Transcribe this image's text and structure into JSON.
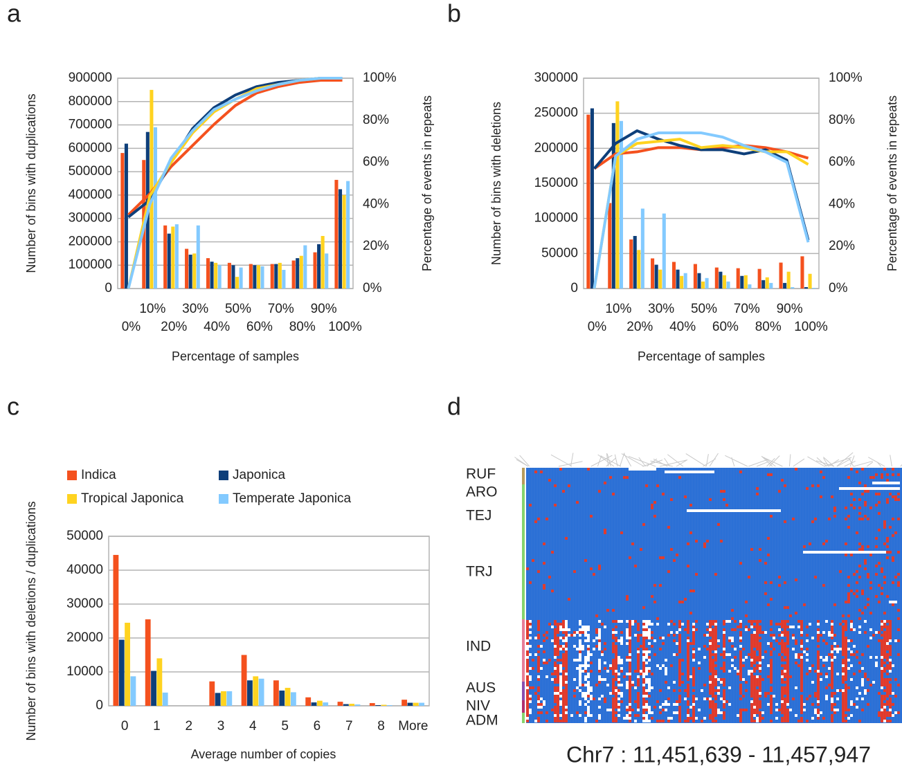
{
  "panel_labels": [
    "a",
    "b",
    "c",
    "d"
  ],
  "chart_data": [
    {
      "type": "bar-line",
      "categories": [
        "0%",
        "10%",
        "20%",
        "30%",
        "40%",
        "50%",
        "60%",
        "70%",
        "80%",
        "90%",
        "100%"
      ],
      "ylabel": "Number of bins with duplications",
      "y2label": "Percentage of events in repeats",
      "xlabel": "Percentage of samples",
      "ylim": [
        0,
        900000
      ],
      "yticks": [
        0,
        100000,
        200000,
        300000,
        400000,
        500000,
        600000,
        700000,
        800000,
        900000
      ],
      "y2lim": [
        0,
        100
      ],
      "y2ticks": [
        {
          "value": 0,
          "label": "0%"
        },
        {
          "value": 20,
          "label": "20%"
        },
        {
          "value": 40,
          "label": "40%"
        },
        {
          "value": 60,
          "label": "60%"
        },
        {
          "value": 80,
          "label": "80%"
        },
        {
          "value": 100,
          "label": "100%"
        }
      ],
      "grid": true,
      "series": [
        {
          "color": "#f4511e",
          "values": [
            580000,
            550000,
            270000,
            170000,
            130000,
            110000,
            105000,
            105000,
            120000,
            155000,
            465000
          ]
        },
        {
          "color": "#0e3f7a",
          "values": [
            620000,
            670000,
            235000,
            145000,
            115000,
            100000,
            100000,
            105000,
            130000,
            190000,
            425000
          ]
        },
        {
          "color": "#ffd320",
          "values": [
            0,
            850000,
            265000,
            150000,
            110000,
            50000,
            100000,
            110000,
            140000,
            225000,
            400000
          ]
        },
        {
          "color": "#83caff",
          "values": [
            0,
            690000,
            275000,
            270000,
            100000,
            90000,
            95000,
            80000,
            185000,
            150000,
            460000
          ]
        }
      ],
      "line_series": [
        {
          "color": "#f4511e",
          "axis": "y2",
          "values": [
            35,
            45,
            58,
            68,
            78,
            87,
            93,
            96,
            98,
            99,
            99
          ]
        },
        {
          "color": "#0e3f7a",
          "axis": "y2",
          "values": [
            34,
            42,
            60,
            76,
            86,
            92,
            96,
            98,
            99,
            100,
            100
          ]
        },
        {
          "color": "#ffd320",
          "axis": "y2",
          "values": [
            0,
            44,
            60,
            74,
            84,
            90,
            95,
            97,
            99,
            100,
            100
          ]
        },
        {
          "color": "#83caff",
          "axis": "y2",
          "values": [
            0,
            40,
            62,
            75,
            85,
            90,
            94,
            97,
            99,
            100,
            100
          ]
        }
      ]
    },
    {
      "type": "bar-line",
      "categories": [
        "0%",
        "10%",
        "20%",
        "30%",
        "40%",
        "50%",
        "60%",
        "70%",
        "80%",
        "90%",
        "100%"
      ],
      "ylabel": "Number of bins with deletions",
      "y2label": "Percentage of events in repeats",
      "xlabel": "Percentage of samples",
      "ylim": [
        0,
        300000
      ],
      "yticks": [
        0,
        50000,
        100000,
        150000,
        200000,
        250000,
        300000
      ],
      "y2lim": [
        0,
        100
      ],
      "y2ticks": [
        {
          "value": 0,
          "label": "0%"
        },
        {
          "value": 20,
          "label": "20%"
        },
        {
          "value": 40,
          "label": "40%"
        },
        {
          "value": 60,
          "label": "60%"
        },
        {
          "value": 80,
          "label": "80%"
        },
        {
          "value": 100,
          "label": "100%"
        }
      ],
      "grid": true,
      "series": [
        {
          "color": "#f4511e",
          "values": [
            248000,
            122000,
            70000,
            43000,
            38000,
            35000,
            30000,
            29000,
            28000,
            37000,
            46000
          ]
        },
        {
          "color": "#0e3f7a",
          "values": [
            257000,
            236000,
            75000,
            34000,
            27000,
            22000,
            24000,
            18000,
            12000,
            8000,
            2000
          ]
        },
        {
          "color": "#ffd320",
          "values": [
            0,
            267000,
            55000,
            27000,
            18000,
            10000,
            19000,
            19000,
            16000,
            24000,
            21000
          ]
        },
        {
          "color": "#83caff",
          "values": [
            0,
            239000,
            114000,
            107000,
            22000,
            15000,
            10000,
            6000,
            8000,
            2000,
            1000
          ]
        }
      ],
      "line_series": [
        {
          "color": "#f4511e",
          "axis": "y2",
          "values": [
            57,
            64,
            65,
            67,
            67,
            66,
            67,
            68,
            67,
            65,
            62
          ]
        },
        {
          "color": "#0e3f7a",
          "axis": "y2",
          "values": [
            57,
            69,
            75,
            71,
            68,
            66,
            66,
            64,
            66,
            61,
            23
          ]
        },
        {
          "color": "#ffd320",
          "axis": "y2",
          "values": [
            0,
            63,
            69,
            70,
            71,
            67,
            68,
            67,
            65,
            65,
            59
          ]
        },
        {
          "color": "#83caff",
          "axis": "y2",
          "values": [
            0,
            63,
            71,
            74,
            74,
            74,
            72,
            68,
            65,
            60,
            22
          ]
        }
      ]
    },
    {
      "type": "bar",
      "categories": [
        "0",
        "1",
        "2",
        "3",
        "4",
        "5",
        "6",
        "7",
        "8",
        "More"
      ],
      "ylabel": "Number of bins with deletions / duplications",
      "xlabel": "Average number of copies",
      "ylim": [
        0,
        50000
      ],
      "yticks": [
        0,
        10000,
        20000,
        30000,
        40000,
        50000
      ],
      "grid": true,
      "series": [
        {
          "name": "Indica",
          "color": "#f4511e",
          "values": [
            44500,
            25500,
            0,
            7200,
            15000,
            7500,
            2500,
            1200,
            800,
            1800
          ]
        },
        {
          "name": "Japonica",
          "color": "#0e3f7a",
          "values": [
            19500,
            10300,
            0,
            3800,
            7500,
            4500,
            1000,
            500,
            200,
            900
          ]
        },
        {
          "name": "Tropical Japonica",
          "color": "#ffd320",
          "values": [
            24500,
            14000,
            0,
            4300,
            8700,
            5300,
            1500,
            600,
            300,
            900
          ]
        },
        {
          "name": "Temperate Japonica",
          "color": "#83caff",
          "values": [
            8700,
            3900,
            0,
            4300,
            8000,
            4000,
            1000,
            400,
            200,
            900
          ]
        }
      ]
    }
  ],
  "heatmap": {
    "row_labels": [
      "RUF",
      "ARO",
      "TEJ",
      "TRJ",
      "IND",
      "AUS",
      "NIV",
      "ADM"
    ],
    "caption": "Chr7 : 11,451,639 - 11,457,947"
  }
}
